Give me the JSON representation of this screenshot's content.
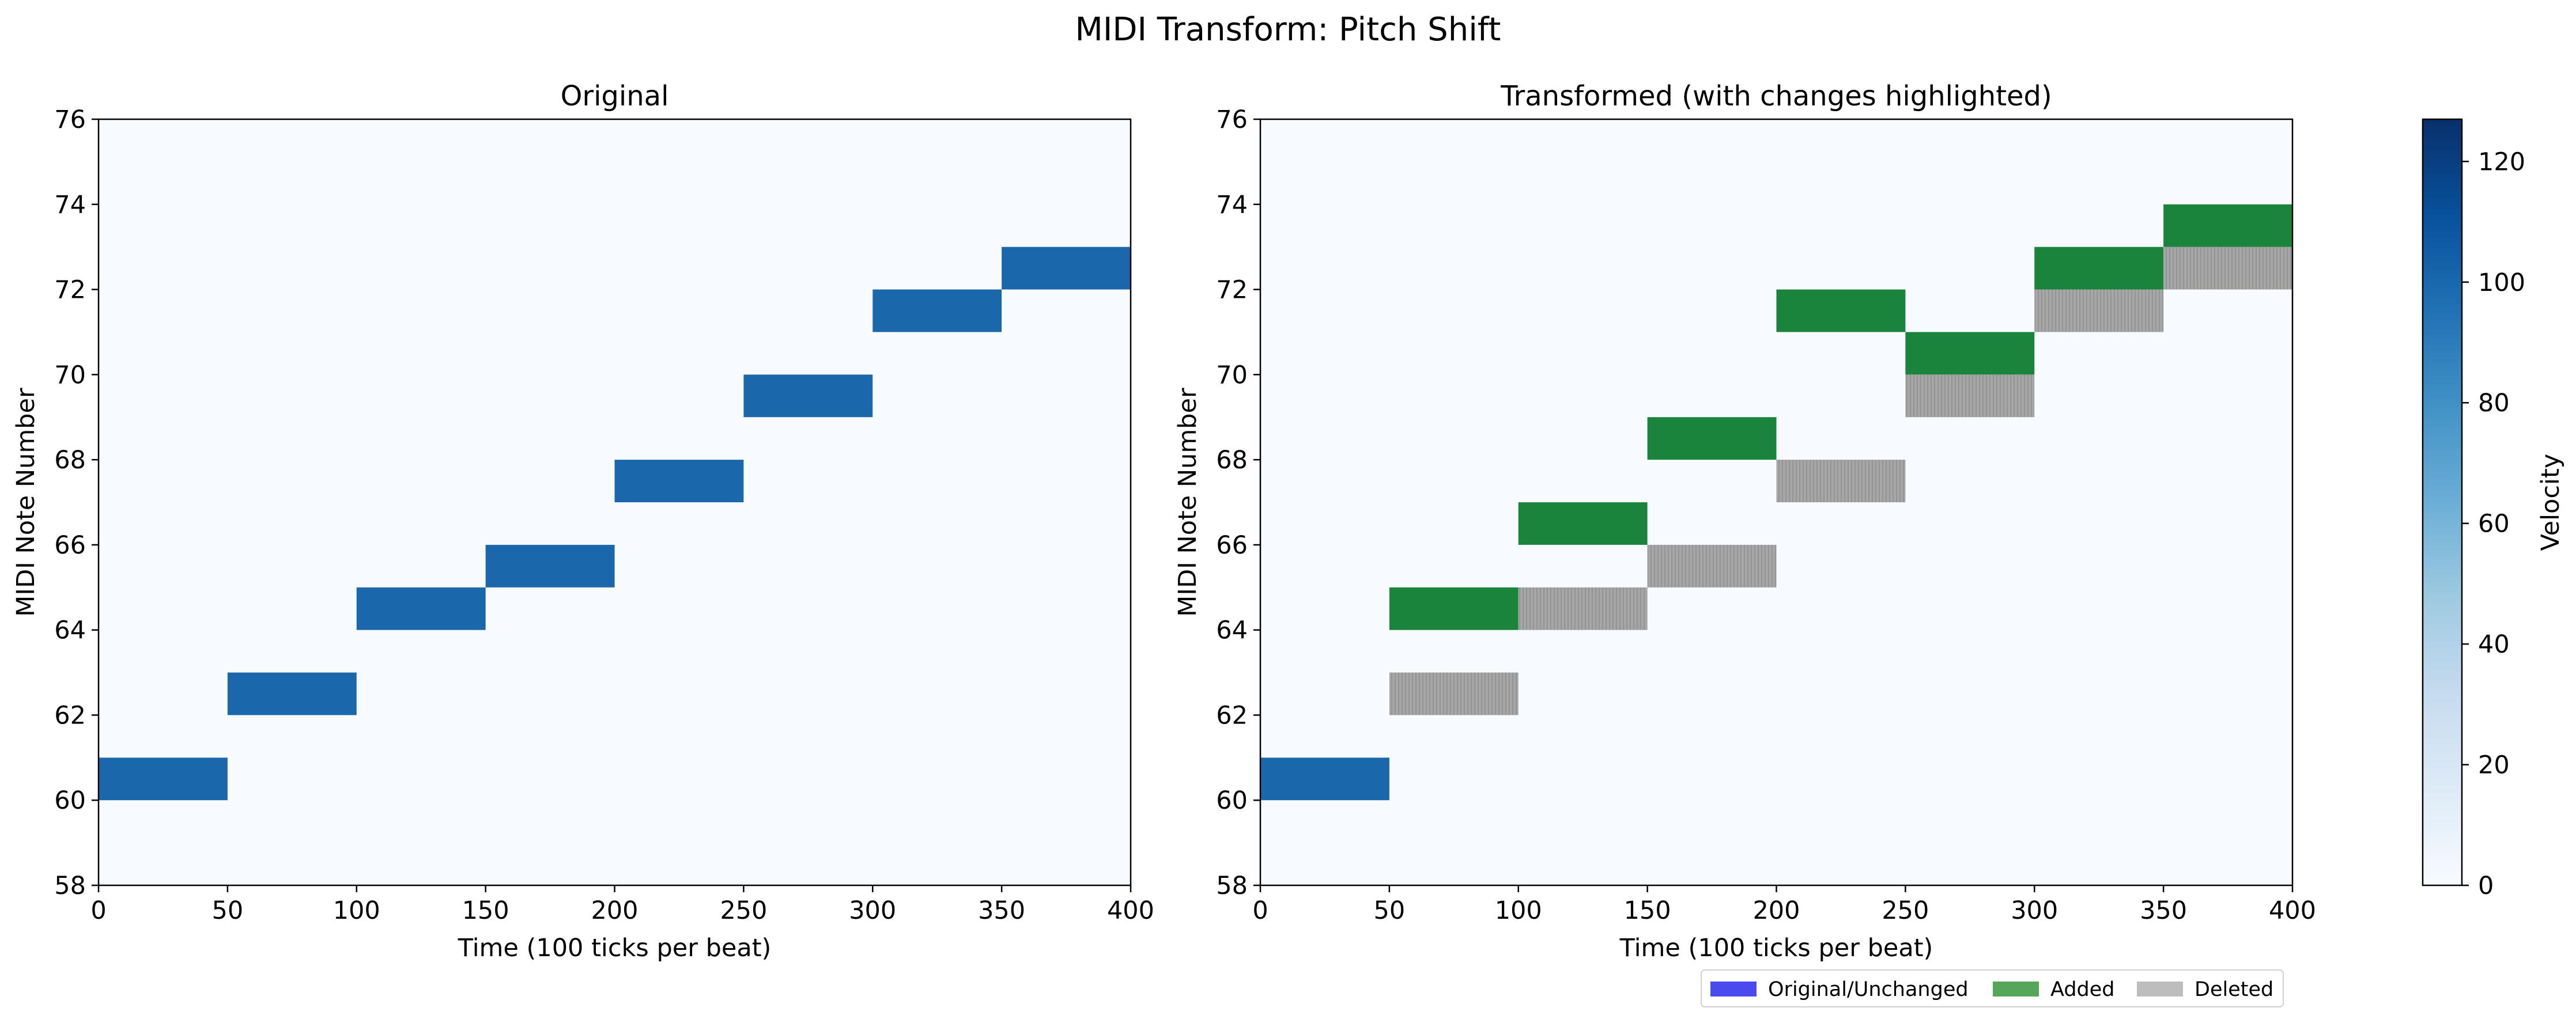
{
  "suptitle": "MIDI Transform: Pitch Shift",
  "colors": {
    "background": "#f7fbff",
    "note": "#1b67ac",
    "added": "#1a843c",
    "deleted": "#a6a6a6",
    "legend_original": "#4a4aee",
    "legend_added": "#55a55b",
    "legend_deleted": "#bdbdbd"
  },
  "chart_data": [
    {
      "type": "heatmap",
      "title": "Original",
      "xlabel": "Time (100 ticks per beat)",
      "ylabel": "MIDI Note Number",
      "xlim": [
        0,
        400
      ],
      "ylim": [
        58,
        76
      ],
      "xticks": [
        "0",
        "50",
        "100",
        "150",
        "200",
        "250",
        "300",
        "350",
        "400"
      ],
      "yticks": [
        "58",
        "60",
        "62",
        "64",
        "66",
        "68",
        "70",
        "72",
        "74",
        "76"
      ],
      "notes": [
        {
          "pitch": 60,
          "start": 0,
          "end": 50,
          "status": "unchanged"
        },
        {
          "pitch": 62,
          "start": 50,
          "end": 100,
          "status": "unchanged"
        },
        {
          "pitch": 64,
          "start": 100,
          "end": 150,
          "status": "unchanged"
        },
        {
          "pitch": 65,
          "start": 150,
          "end": 200,
          "status": "unchanged"
        },
        {
          "pitch": 67,
          "start": 200,
          "end": 250,
          "status": "unchanged"
        },
        {
          "pitch": 69,
          "start": 250,
          "end": 300,
          "status": "unchanged"
        },
        {
          "pitch": 71,
          "start": 300,
          "end": 350,
          "status": "unchanged"
        },
        {
          "pitch": 72,
          "start": 350,
          "end": 400,
          "status": "unchanged"
        }
      ]
    },
    {
      "type": "heatmap",
      "title": "Transformed (with changes highlighted)",
      "xlabel": "Time (100 ticks per beat)",
      "ylabel": "MIDI Note Number",
      "xlim": [
        0,
        400
      ],
      "ylim": [
        58,
        76
      ],
      "xticks": [
        "0",
        "50",
        "100",
        "150",
        "200",
        "250",
        "300",
        "350",
        "400"
      ],
      "yticks": [
        "58",
        "60",
        "62",
        "64",
        "66",
        "68",
        "70",
        "72",
        "74",
        "76"
      ],
      "notes": [
        {
          "pitch": 60,
          "start": 0,
          "end": 50,
          "status": "unchanged"
        },
        {
          "pitch": 62,
          "start": 50,
          "end": 100,
          "status": "deleted"
        },
        {
          "pitch": 64,
          "start": 50,
          "end": 100,
          "status": "added"
        },
        {
          "pitch": 64,
          "start": 100,
          "end": 150,
          "status": "deleted"
        },
        {
          "pitch": 66,
          "start": 100,
          "end": 150,
          "status": "added"
        },
        {
          "pitch": 65,
          "start": 150,
          "end": 200,
          "status": "deleted"
        },
        {
          "pitch": 68,
          "start": 150,
          "end": 200,
          "status": "added"
        },
        {
          "pitch": 67,
          "start": 200,
          "end": 250,
          "status": "deleted"
        },
        {
          "pitch": 71,
          "start": 200,
          "end": 250,
          "status": "added"
        },
        {
          "pitch": 69,
          "start": 250,
          "end": 300,
          "status": "deleted"
        },
        {
          "pitch": 70,
          "start": 250,
          "end": 300,
          "status": "added"
        },
        {
          "pitch": 71,
          "start": 300,
          "end": 350,
          "status": "deleted"
        },
        {
          "pitch": 72,
          "start": 300,
          "end": 350,
          "status": "added"
        },
        {
          "pitch": 72,
          "start": 350,
          "end": 400,
          "status": "deleted"
        },
        {
          "pitch": 73,
          "start": 350,
          "end": 400,
          "status": "added"
        }
      ],
      "legend": {
        "position": "lower-right-below",
        "entries": [
          {
            "label": "Original/Unchanged",
            "color_key": "legend_original"
          },
          {
            "label": "Added",
            "color_key": "legend_added"
          },
          {
            "label": "Deleted",
            "color_key": "legend_deleted"
          }
        ]
      }
    }
  ],
  "colorbar": {
    "label": "Velocity",
    "range": [
      0,
      127
    ],
    "ticks": [
      "0",
      "20",
      "40",
      "60",
      "80",
      "100",
      "120"
    ],
    "colormap": "Blues"
  }
}
